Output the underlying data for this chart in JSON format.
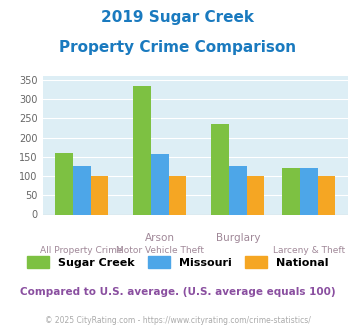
{
  "title_line1": "2019 Sugar Creek",
  "title_line2": "Property Crime Comparison",
  "title_color": "#1a7abf",
  "sugar_creek": [
    160,
    335,
    235,
    120
  ],
  "missouri": [
    127,
    156,
    127,
    121
  ],
  "national": [
    100,
    100,
    100,
    100
  ],
  "color_sugar_creek": "#7dc142",
  "color_missouri": "#4da6e8",
  "color_national": "#f5a623",
  "ylim": [
    0,
    360
  ],
  "yticks": [
    0,
    50,
    100,
    150,
    200,
    250,
    300,
    350
  ],
  "bg_color": "#ddeef5",
  "footer_text": "© 2025 CityRating.com - https://www.cityrating.com/crime-statistics/",
  "comparison_text": "Compared to U.S. average. (U.S. average equals 100)",
  "legend_labels": [
    "Sugar Creek",
    "Missouri",
    "National"
  ],
  "label_top": [
    "",
    "Arson",
    "Burglary",
    ""
  ],
  "label_bot": [
    "All Property Crime",
    "Motor Vehicle Theft",
    "",
    "Larceny & Theft"
  ],
  "label_color": "#a08898",
  "bar_width": 0.25
}
